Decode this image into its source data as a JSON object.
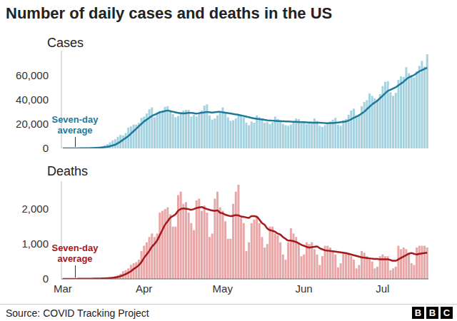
{
  "title": "Number of daily cases and deaths in the US",
  "source": "Source: COVID Tracking Project",
  "logo": "BBC",
  "chart_data": [
    {
      "type": "bar",
      "title": "Cases",
      "tick_labels": "y",
      "grid": false,
      "categories": [
        "Mar",
        null,
        null,
        null,
        null,
        null,
        null,
        null,
        null,
        null,
        null,
        null,
        null,
        null,
        null,
        null,
        null,
        null,
        null,
        null,
        null,
        null,
        null,
        null,
        null,
        null,
        null,
        null,
        null,
        null,
        null,
        "Apr",
        null,
        null,
        null,
        null,
        null,
        null,
        null,
        null,
        null,
        null,
        null,
        null,
        null,
        null,
        null,
        null,
        null,
        null,
        null,
        null,
        null,
        null,
        null,
        null,
        null,
        null,
        null,
        null,
        null,
        "May",
        null,
        null,
        null,
        null,
        null,
        null,
        null,
        null,
        null,
        null,
        null,
        null,
        null,
        null,
        null,
        null,
        null,
        null,
        null,
        null,
        null,
        null,
        null,
        null,
        null,
        null,
        null,
        null,
        null,
        null,
        "Jun",
        null,
        null,
        null,
        null,
        null,
        null,
        null,
        null,
        null,
        null,
        null,
        null,
        null,
        null,
        null,
        null,
        null,
        null,
        null,
        null,
        null,
        null,
        null,
        null,
        null,
        null,
        null,
        null,
        null,
        "Jul",
        null,
        null,
        null,
        null,
        null,
        null,
        null,
        null,
        null,
        null,
        null,
        null,
        null,
        null,
        null,
        null,
        null
      ],
      "ylim": [
        0,
        80000
      ],
      "yticks": [
        0,
        {
          "value": 20000,
          "label": "20,000"
        },
        {
          "value": 40000,
          "label": "40,000"
        },
        {
          "value": 60000,
          "label": "60,000"
        }
      ],
      "series": [
        {
          "type": "bar",
          "color": "#a6d2e0",
          "values": [
            10,
            20,
            30,
            40,
            70,
            100,
            120,
            150,
            200,
            300,
            400,
            500,
            700,
            900,
            1200,
            1800,
            2500,
            3500,
            5000,
            6500,
            7500,
            9500,
            11000,
            10500,
            12500,
            17000,
            18000,
            19500,
            19500,
            21000,
            25000,
            26000,
            28500,
            32000,
            33500,
            25500,
            29000,
            30500,
            31000,
            34000,
            34500,
            30500,
            28000,
            25500,
            26500,
            29500,
            31000,
            31500,
            31500,
            26000,
            27500,
            26000,
            28500,
            31000,
            35000,
            36000,
            27000,
            23500,
            24500,
            27000,
            29500,
            33500,
            29000,
            25500,
            22500,
            23000,
            24500,
            28000,
            27500,
            25500,
            21000,
            19000,
            22000,
            21000,
            27000,
            25500,
            24500,
            21000,
            21500,
            20000,
            21500,
            26000,
            24000,
            22500,
            20000,
            19000,
            18500,
            19500,
            22000,
            24500,
            24000,
            20500,
            21500,
            20000,
            20500,
            21500,
            24500,
            22500,
            18500,
            17500,
            19000,
            21000,
            22000,
            23500,
            25000,
            19500,
            18500,
            23000,
            24000,
            27500,
            31000,
            32500,
            26500,
            28000,
            34500,
            38000,
            39500,
            45000,
            43000,
            41000,
            40000,
            44500,
            51000,
            54500,
            55000,
            46000,
            43000,
            45500,
            56000,
            59000,
            58500,
            66500,
            61500,
            60000,
            58000,
            63000,
            67500,
            71500,
            67000,
            77000
          ]
        },
        {
          "type": "line",
          "name": "Seven-day average",
          "color": "#1e7a9a",
          "values": [
            10,
            15,
            20,
            30,
            40,
            55,
            70,
            90,
            115,
            150,
            200,
            260,
            340,
            440,
            570,
            750,
            1000,
            1350,
            1800,
            2400,
            3000,
            4200,
            5500,
            7000,
            8500,
            10000,
            12000,
            14000,
            16000,
            18000,
            20000,
            22000,
            23500,
            25000,
            26500,
            27500,
            28500,
            29500,
            30000,
            30500,
            31000,
            30500,
            30000,
            29500,
            29000,
            28800,
            28600,
            28800,
            29000,
            29000,
            28800,
            28500,
            28800,
            29200,
            29500,
            29800,
            29600,
            29400,
            29600,
            29800,
            30000,
            29500,
            29200,
            28900,
            28600,
            28200,
            27800,
            27500,
            27000,
            26500,
            26000,
            25500,
            25000,
            24500,
            24300,
            24000,
            23700,
            23400,
            23000,
            22800,
            22700,
            22500,
            22400,
            22300,
            22200,
            22100,
            22000,
            21900,
            21800,
            21700,
            21600,
            21500,
            21400,
            21300,
            21200,
            21100,
            21000,
            21000,
            21000,
            20900,
            20700,
            20600,
            20700,
            20800,
            21000,
            21200,
            21500,
            21700,
            22000,
            22800,
            23800,
            25000,
            26000,
            27000,
            28500,
            30000,
            32000,
            34000,
            36000,
            37500,
            39000,
            41000,
            43000,
            45000,
            47000,
            48000,
            49000,
            50000,
            51500,
            53000,
            54500,
            56500,
            58000,
            59000,
            60000,
            61500,
            63000,
            64000,
            65000,
            66000
          ]
        }
      ]
    },
    {
      "type": "bar",
      "title": "Deaths",
      "grid": false,
      "categories": [
        "Mar",
        null,
        null,
        null,
        null,
        null,
        null,
        null,
        null,
        null,
        null,
        null,
        null,
        null,
        null,
        null,
        null,
        null,
        null,
        null,
        null,
        null,
        null,
        null,
        null,
        null,
        null,
        null,
        null,
        null,
        null,
        "Apr",
        null,
        null,
        null,
        null,
        null,
        null,
        null,
        null,
        null,
        null,
        null,
        null,
        null,
        null,
        null,
        null,
        null,
        null,
        null,
        null,
        null,
        null,
        null,
        null,
        null,
        null,
        null,
        null,
        null,
        "May",
        null,
        null,
        null,
        null,
        null,
        null,
        null,
        null,
        null,
        null,
        null,
        null,
        null,
        null,
        null,
        null,
        null,
        null,
        null,
        null,
        null,
        null,
        null,
        null,
        null,
        null,
        null,
        null,
        null,
        null,
        "Jun",
        null,
        null,
        null,
        null,
        null,
        null,
        null,
        null,
        null,
        null,
        null,
        null,
        null,
        null,
        null,
        null,
        null,
        null,
        null,
        null,
        null,
        null,
        null,
        null,
        null,
        null,
        null,
        null,
        null,
        "Jul",
        null,
        null,
        null,
        null,
        null,
        null,
        null,
        null,
        null,
        null,
        null,
        null,
        null,
        null,
        null,
        null,
        null
      ],
      "ylim": [
        0,
        2800
      ],
      "yticks": [
        0,
        {
          "value": 1000,
          "label": "1,000"
        },
        {
          "value": 2000,
          "label": "2,000"
        }
      ],
      "series": [
        {
          "type": "bar",
          "color": "#e8a6a6",
          "values": [
            0,
            0,
            1,
            1,
            2,
            2,
            3,
            4,
            5,
            6,
            5,
            10,
            10,
            10,
            15,
            20,
            25,
            35,
            50,
            60,
            80,
            110,
            150,
            220,
            250,
            300,
            400,
            450,
            480,
            550,
            800,
            950,
            1050,
            1200,
            1300,
            1200,
            1300,
            1900,
            1950,
            2000,
            2050,
            1850,
            1500,
            1500,
            2400,
            2500,
            2150,
            2200,
            1900,
            1600,
            1400,
            2250,
            2300,
            1950,
            2100,
            1900,
            1200,
            1300,
            2300,
            2500,
            2050,
            1950,
            1650,
            1150,
            1150,
            2150,
            2500,
            2700,
            1750,
            1600,
            800,
            1050,
            1600,
            1700,
            1800,
            1600,
            1200,
            900,
            1000,
            1500,
            1500,
            1300,
            1250,
            1050,
            700,
            550,
            1050,
            1450,
            1300,
            1200,
            1000,
            650,
            700,
            1050,
            1000,
            1050,
            850,
            700,
            400,
            650,
            950,
            950,
            900,
            800,
            700,
            330,
            450,
            750,
            750,
            700,
            650,
            550,
            300,
            400,
            800,
            750,
            650,
            600,
            500,
            300,
            350,
            650,
            700,
            650,
            650,
            250,
            300,
            350,
            950,
            850,
            900,
            850,
            750,
            450,
            400,
            900,
            950,
            950,
            950,
            900
          ]
        },
        {
          "type": "line",
          "name": "Seven-day average",
          "color": "#a3191c",
          "values": [
            0,
            0,
            1,
            1,
            2,
            2,
            3,
            3,
            4,
            5,
            6,
            7,
            8,
            9,
            11,
            13,
            16,
            20,
            26,
            33,
            43,
            58,
            78,
            105,
            135,
            175,
            220,
            280,
            330,
            390,
            480,
            600,
            700,
            800,
            920,
            1000,
            1100,
            1250,
            1400,
            1550,
            1650,
            1750,
            1800,
            1850,
            1950,
            2000,
            2020,
            2010,
            2000,
            1980,
            2000,
            2030,
            2050,
            2060,
            2030,
            2000,
            1980,
            1960,
            1950,
            1960,
            1900,
            1880,
            1840,
            1820,
            1800,
            1810,
            1830,
            1820,
            1790,
            1780,
            1760,
            1750,
            1800,
            1800,
            1780,
            1700,
            1600,
            1550,
            1450,
            1400,
            1380,
            1350,
            1300,
            1270,
            1200,
            1150,
            1100,
            1100,
            1080,
            1060,
            1020,
            980,
            950,
            920,
            900,
            910,
            920,
            930,
            880,
            850,
            820,
            810,
            800,
            790,
            780,
            770,
            760,
            750,
            740,
            720,
            700,
            680,
            660,
            640,
            620,
            610,
            600,
            590,
            580,
            570,
            570,
            560,
            560,
            560,
            560,
            540,
            520,
            520,
            560,
            600,
            640,
            680,
            720,
            740,
            720,
            700,
            720,
            730,
            740,
            750
          ]
        }
      ]
    }
  ]
}
